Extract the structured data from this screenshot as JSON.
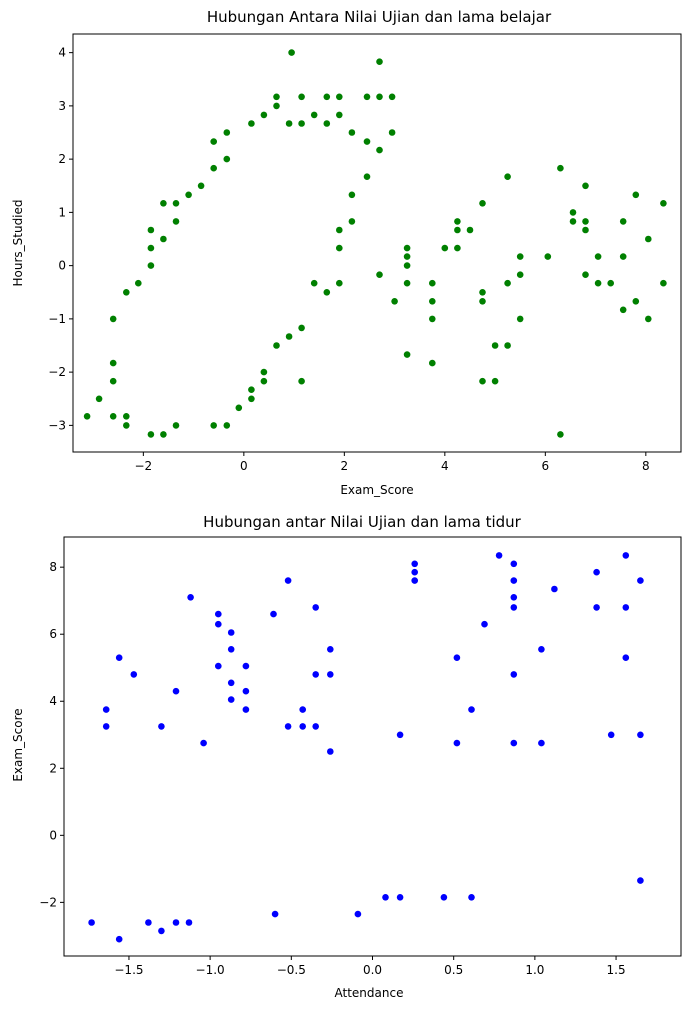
{
  "charts": [
    {
      "type": "scatter",
      "title": "Hubungan Antara Nilai Ujian dan lama belajar",
      "xlabel": "Exam_Score",
      "ylabel": "Hours_Studied",
      "color": "#008000",
      "xlim": [
        -3.4,
        8.7
      ],
      "ylim": [
        -3.5,
        4.35
      ],
      "xticks": [
        -2,
        0,
        2,
        4,
        6,
        8
      ],
      "yticks": [
        -3,
        -2,
        -1,
        0,
        1,
        2,
        3,
        4
      ],
      "xtick_labels": [
        "−2",
        "0",
        "2",
        "4",
        "6",
        "8"
      ],
      "ytick_labels": [
        "−3",
        "−2",
        "−1",
        "0",
        "1",
        "2",
        "3",
        "4"
      ],
      "grid": false,
      "legend": "none",
      "points": [
        [
          -3.12,
          -2.83
        ],
        [
          -2.88,
          -2.5
        ],
        [
          -2.6,
          -2.83
        ],
        [
          -2.34,
          -2.83
        ],
        [
          -2.34,
          -3.0
        ],
        [
          -1.85,
          -3.17
        ],
        [
          -1.6,
          -3.17
        ],
        [
          -1.35,
          -3.0
        ],
        [
          -0.6,
          -3.0
        ],
        [
          -0.34,
          -3.0
        ],
        [
          -0.1,
          -2.67
        ],
        [
          0.15,
          -2.5
        ],
        [
          -2.6,
          -1.0
        ],
        [
          -2.6,
          -1.83
        ],
        [
          -2.6,
          -2.17
        ],
        [
          -2.34,
          -0.5
        ],
        [
          -2.1,
          -0.33
        ],
        [
          -1.85,
          0.0
        ],
        [
          -1.85,
          0.33
        ],
        [
          -1.85,
          0.67
        ],
        [
          -1.6,
          0.5
        ],
        [
          -1.6,
          1.17
        ],
        [
          -1.35,
          0.83
        ],
        [
          -1.35,
          1.17
        ],
        [
          -1.1,
          1.33
        ],
        [
          -0.85,
          1.5
        ],
        [
          -0.6,
          1.83
        ],
        [
          -0.6,
          2.33
        ],
        [
          -0.34,
          2.0
        ],
        [
          -0.34,
          2.5
        ],
        [
          0.15,
          2.67
        ],
        [
          0.4,
          2.83
        ],
        [
          0.65,
          3.0
        ],
        [
          0.65,
          3.17
        ],
        [
          0.9,
          2.67
        ],
        [
          1.15,
          3.17
        ],
        [
          1.15,
          2.67
        ],
        [
          1.4,
          2.83
        ],
        [
          1.65,
          3.17
        ],
        [
          1.65,
          2.67
        ],
        [
          1.9,
          2.83
        ],
        [
          1.9,
          3.17
        ],
        [
          2.15,
          2.5
        ],
        [
          2.45,
          2.33
        ],
        [
          2.45,
          3.17
        ],
        [
          2.7,
          3.17
        ],
        [
          2.95,
          3.17
        ],
        [
          2.95,
          2.5
        ],
        [
          2.7,
          2.17
        ],
        [
          2.45,
          1.67
        ],
        [
          2.15,
          1.33
        ],
        [
          2.15,
          0.83
        ],
        [
          1.9,
          0.67
        ],
        [
          1.9,
          0.33
        ],
        [
          1.9,
          -0.33
        ],
        [
          1.65,
          -0.5
        ],
        [
          1.4,
          -0.33
        ],
        [
          1.15,
          -1.17
        ],
        [
          1.15,
          -2.17
        ],
        [
          0.9,
          -1.33
        ],
        [
          0.65,
          -1.5
        ],
        [
          0.4,
          -2.17
        ],
        [
          0.4,
          -2.0
        ],
        [
          0.15,
          -2.33
        ],
        [
          0.95,
          4.0
        ],
        [
          2.7,
          3.83
        ],
        [
          2.7,
          -0.17
        ],
        [
          3.0,
          -0.67
        ],
        [
          3.25,
          0.33
        ],
        [
          3.25,
          0.17
        ],
        [
          3.25,
          0.0
        ],
        [
          3.25,
          -0.33
        ],
        [
          3.25,
          -1.67
        ],
        [
          3.75,
          -0.33
        ],
        [
          3.75,
          -0.67
        ],
        [
          3.75,
          -1.0
        ],
        [
          3.75,
          -1.83
        ],
        [
          4.0,
          0.33
        ],
        [
          4.25,
          0.83
        ],
        [
          4.25,
          0.67
        ],
        [
          4.25,
          0.33
        ],
        [
          4.5,
          0.67
        ],
        [
          4.75,
          1.17
        ],
        [
          4.75,
          -0.5
        ],
        [
          4.75,
          -0.67
        ],
        [
          4.75,
          -2.17
        ],
        [
          5.0,
          -1.5
        ],
        [
          5.0,
          -2.17
        ],
        [
          5.25,
          1.67
        ],
        [
          5.25,
          -0.33
        ],
        [
          5.25,
          -1.5
        ],
        [
          5.5,
          0.17
        ],
        [
          5.5,
          -0.17
        ],
        [
          5.5,
          -1.0
        ],
        [
          6.05,
          0.17
        ],
        [
          6.3,
          1.83
        ],
        [
          6.3,
          -3.17
        ],
        [
          6.55,
          1.0
        ],
        [
          6.55,
          0.83
        ],
        [
          6.8,
          1.5
        ],
        [
          6.8,
          0.83
        ],
        [
          6.8,
          0.67
        ],
        [
          6.8,
          -0.17
        ],
        [
          7.05,
          0.17
        ],
        [
          7.05,
          -0.33
        ],
        [
          7.3,
          -0.33
        ],
        [
          7.55,
          0.83
        ],
        [
          7.55,
          0.17
        ],
        [
          7.55,
          -0.83
        ],
        [
          7.8,
          1.33
        ],
        [
          7.8,
          -0.67
        ],
        [
          8.05,
          0.5
        ],
        [
          8.05,
          -1.0
        ],
        [
          8.35,
          1.17
        ],
        [
          8.35,
          -0.33
        ]
      ]
    },
    {
      "type": "scatter",
      "title": "Hubungan antar Nilai Ujian dan lama tidur",
      "xlabel": "Attendance",
      "ylabel": "Exam_Score",
      "color": "#0000ff",
      "xlim": [
        -1.9,
        1.9
      ],
      "ylim": [
        -3.6,
        8.9
      ],
      "xticks": [
        -1.5,
        -1.0,
        -0.5,
        0.0,
        0.5,
        1.0,
        1.5
      ],
      "yticks": [
        -2,
        0,
        2,
        4,
        6,
        8
      ],
      "xtick_labels": [
        "−1.5",
        "−1.0",
        "−0.5",
        "0.0",
        "0.5",
        "1.0",
        "1.5"
      ],
      "ytick_labels": [
        "−2",
        "0",
        "2",
        "4",
        "6",
        "8"
      ],
      "grid": false,
      "legend": "none",
      "points": [
        [
          -1.73,
          -2.6
        ],
        [
          -1.56,
          -3.1
        ],
        [
          -1.3,
          -2.85
        ],
        [
          -1.38,
          -2.6
        ],
        [
          -1.21,
          -2.6
        ],
        [
          -1.13,
          -2.6
        ],
        [
          -0.6,
          -2.35
        ],
        [
          -0.09,
          -2.35
        ],
        [
          0.08,
          -1.85
        ],
        [
          0.17,
          -1.85
        ],
        [
          0.44,
          -1.85
        ],
        [
          0.61,
          -1.85
        ],
        [
          1.65,
          -1.35
        ],
        [
          -1.64,
          3.75
        ],
        [
          -1.64,
          3.25
        ],
        [
          -1.56,
          5.3
        ],
        [
          -1.47,
          4.8
        ],
        [
          -1.3,
          3.25
        ],
        [
          -1.21,
          4.3
        ],
        [
          -1.12,
          7.1
        ],
        [
          -1.04,
          2.75
        ],
        [
          -0.95,
          6.6
        ],
        [
          -0.95,
          6.3
        ],
        [
          -0.95,
          5.05
        ],
        [
          -0.87,
          6.05
        ],
        [
          -0.87,
          5.55
        ],
        [
          -0.87,
          4.55
        ],
        [
          -0.87,
          4.05
        ],
        [
          -0.78,
          5.05
        ],
        [
          -0.78,
          4.3
        ],
        [
          -0.78,
          3.75
        ],
        [
          -0.61,
          6.6
        ],
        [
          -0.52,
          7.6
        ],
        [
          -0.52,
          3.25
        ],
        [
          -0.43,
          3.75
        ],
        [
          -0.43,
          3.25
        ],
        [
          -0.35,
          6.8
        ],
        [
          -0.35,
          4.8
        ],
        [
          -0.35,
          3.25
        ],
        [
          -0.26,
          5.55
        ],
        [
          -0.26,
          4.8
        ],
        [
          -0.26,
          2.5
        ],
        [
          0.17,
          3.0
        ],
        [
          0.26,
          8.1
        ],
        [
          0.26,
          7.85
        ],
        [
          0.26,
          7.6
        ],
        [
          0.52,
          5.3
        ],
        [
          0.52,
          2.75
        ],
        [
          0.61,
          3.75
        ],
        [
          0.69,
          6.3
        ],
        [
          0.78,
          8.35
        ],
        [
          0.87,
          8.1
        ],
        [
          0.87,
          7.6
        ],
        [
          0.87,
          7.1
        ],
        [
          0.87,
          6.8
        ],
        [
          0.87,
          4.8
        ],
        [
          0.87,
          2.75
        ],
        [
          1.04,
          5.55
        ],
        [
          1.04,
          2.75
        ],
        [
          1.12,
          7.35
        ],
        [
          1.38,
          7.85
        ],
        [
          1.38,
          6.8
        ],
        [
          1.47,
          3.0
        ],
        [
          1.56,
          8.35
        ],
        [
          1.56,
          6.8
        ],
        [
          1.56,
          5.3
        ],
        [
          1.65,
          7.6
        ],
        [
          1.65,
          3.0
        ]
      ]
    }
  ]
}
